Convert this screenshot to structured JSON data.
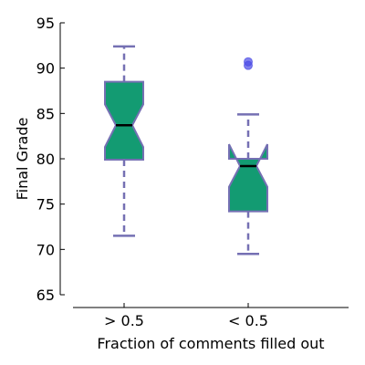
{
  "chart_data": {
    "type": "box",
    "notched": true,
    "xlabel": "Fraction of comments filled out",
    "ylabel": "Final Grade",
    "ylim": [
      64,
      95
    ],
    "yticks": [
      65,
      70,
      75,
      80,
      85,
      90,
      95
    ],
    "categories": [
      "> 0.5",
      "< 0.5"
    ],
    "boxes": [
      {
        "category": "> 0.5",
        "whisker_low": 71.5,
        "q1": 79.9,
        "median": 83.7,
        "q3": 88.5,
        "whisker_high": 92.4,
        "notch_low": 81.3,
        "notch_high": 86.0,
        "outliers": []
      },
      {
        "category": "< 0.5",
        "whisker_low": 69.5,
        "q1": 74.2,
        "median": 79.2,
        "q3": 80.0,
        "whisker_high": 84.9,
        "notch_low": 76.9,
        "notch_high": 81.6,
        "outliers": [
          90.3,
          90.7
        ]
      }
    ],
    "colors": {
      "box_fill": "#139b72",
      "box_edge": "#7570b3",
      "median": "#000000",
      "whisker": "#7570b3",
      "outlier": "#4a4ae6"
    }
  }
}
